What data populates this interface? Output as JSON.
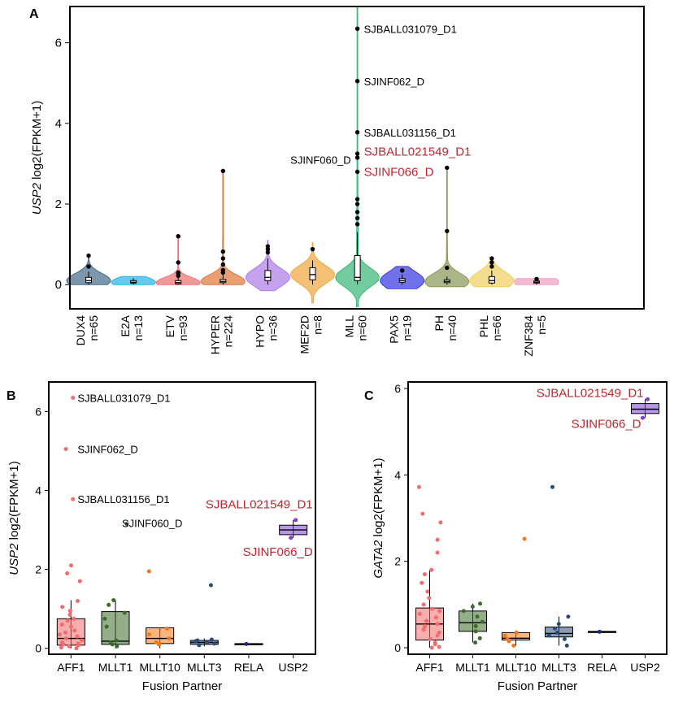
{
  "figure": {
    "panels": [
      "A",
      "B",
      "C"
    ]
  },
  "chart_data": [
    {
      "id": "A",
      "type": "violin",
      "panel_label": "A",
      "ylabel_gene": "USP2",
      "ylabel_rest": " log2(FPKM+1)",
      "ylim": [
        -0.6,
        6.9
      ],
      "yticks": [
        0,
        2,
        4,
        6
      ],
      "groups": [
        {
          "name": "DUX4",
          "n": "n=65",
          "color": "#4a6d8c",
          "q1": 0.05,
          "median": 0.1,
          "q3": 0.18,
          "min": 0.0,
          "max": 0.32,
          "outliers": [
            0.45,
            0.72
          ],
          "spread": 0.18,
          "dmin": 0.0,
          "dmax": 0.72
        },
        {
          "name": "E2A",
          "n": "n=13",
          "color": "#29b6e8",
          "q1": 0.04,
          "median": 0.06,
          "q3": 0.1,
          "min": 0.0,
          "max": 0.16,
          "outliers": [],
          "spread": 0.13,
          "dmin": 0.0,
          "dmax": 0.2
        },
        {
          "name": "ETV",
          "n": "n=93",
          "color": "#f07070",
          "q1": 0.02,
          "median": 0.05,
          "q3": 0.1,
          "min": 0.0,
          "max": 0.18,
          "outliers": [
            0.22,
            0.28,
            0.3,
            0.55,
            1.2
          ],
          "spread": 0.13,
          "dmin": 0.0,
          "dmax": 1.2
        },
        {
          "name": "HYPER",
          "n": "n=224",
          "color": "#e07a3a",
          "q1": 0.05,
          "median": 0.08,
          "q3": 0.13,
          "min": 0.0,
          "max": 0.25,
          "outliers": [
            0.3,
            0.36,
            0.5,
            0.65,
            0.82,
            2.82
          ],
          "spread": 0.17,
          "dmin": 0.0,
          "dmax": 2.82
        },
        {
          "name": "HYPO",
          "n": "n=36",
          "color": "#b07de8",
          "q1": 0.1,
          "median": 0.18,
          "q3": 0.35,
          "min": 0.0,
          "max": 0.65,
          "outliers": [
            0.8,
            0.88,
            0.95
          ],
          "spread": 0.22,
          "dmin": -0.15,
          "dmax": 1.1
        },
        {
          "name": "MEF2D",
          "n": "n=8",
          "color": "#f0a840",
          "q1": 0.12,
          "median": 0.25,
          "q3": 0.42,
          "min": 0.0,
          "max": 0.6,
          "outliers": [
            0.88
          ],
          "spread": 0.22,
          "dmin": -0.45,
          "dmax": 1.05
        },
        {
          "name": "MLL",
          "n": "n=60",
          "color": "#3cb878",
          "q1": 0.1,
          "median": 0.18,
          "q3": 0.72,
          "min": 0.0,
          "max": 1.3,
          "outliers": [
            1.5,
            1.65,
            1.8,
            2.0,
            2.12,
            2.8,
            3.15,
            3.25,
            3.78,
            5.05,
            6.35
          ],
          "spread": 0.23,
          "dmin": -0.55,
          "dmax": 6.9
        },
        {
          "name": "PAX5",
          "n": "n=19",
          "color": "#3a3ae0",
          "q1": 0.06,
          "median": 0.1,
          "q3": 0.15,
          "min": 0.0,
          "max": 0.25,
          "outliers": [
            0.35
          ],
          "spread": 0.22,
          "dmin": -0.1,
          "dmax": 0.45
        },
        {
          "name": "PH",
          "n": "n=40",
          "color": "#8a9a5a",
          "q1": 0.05,
          "median": 0.08,
          "q3": 0.12,
          "min": 0.0,
          "max": 0.2,
          "outliers": [
            0.42,
            1.33,
            2.9
          ],
          "spread": 0.2,
          "dmin": -0.05,
          "dmax": 2.9
        },
        {
          "name": "PHL",
          "n": "n=66",
          "color": "#f0d060",
          "q1": 0.04,
          "median": 0.1,
          "q3": 0.2,
          "min": 0.0,
          "max": 0.35,
          "outliers": [
            0.45,
            0.55,
            0.65
          ],
          "spread": 0.22,
          "dmin": -0.05,
          "dmax": 0.65
        },
        {
          "name": "ZNF384",
          "n": "n=5",
          "color": "#f3a0c0",
          "q1": 0.04,
          "median": 0.06,
          "q3": 0.09,
          "min": 0.0,
          "max": 0.12,
          "outliers": [
            0.14
          ],
          "spread": 0.2,
          "dmin": 0.0,
          "dmax": 0.15
        }
      ],
      "annotations": [
        {
          "text": "SJBALL031079_D1",
          "group": "MLL",
          "y": 6.35,
          "color": "#000000",
          "side": "right"
        },
        {
          "text": "SJINF062_D",
          "group": "MLL",
          "y": 5.05,
          "color": "#000000",
          "side": "right"
        },
        {
          "text": "SJBALL031156_D1",
          "group": "MLL",
          "y": 3.78,
          "color": "#000000",
          "side": "right"
        },
        {
          "text": "SJINF060_D",
          "group": "MLL",
          "y": 3.15,
          "color": "#000000",
          "side": "left"
        },
        {
          "text": "SJBALL021549_D1",
          "group": "MLL",
          "y": 3.25,
          "color": "#c0272d",
          "side": "right"
        },
        {
          "text": "SJINF066_D",
          "group": "MLL",
          "y": 2.8,
          "color": "#c0272d",
          "side": "right"
        }
      ]
    },
    {
      "id": "B",
      "type": "box",
      "panel_label": "B",
      "ylabel_gene": "USP2",
      "ylabel_rest": " log2(FPKM+1)",
      "xlabel": "Fusion Partner",
      "ylim": [
        -0.15,
        6.75
      ],
      "yticks": [
        0,
        2,
        4,
        6
      ],
      "groups": [
        {
          "name": "AFF1",
          "color": "#f36b6b",
          "q1": 0.08,
          "median": 0.25,
          "q3": 0.75,
          "wlo": 0.0,
          "whi": 1.22,
          "points": [
            0.0,
            0.02,
            0.05,
            0.08,
            0.1,
            0.12,
            0.15,
            0.2,
            0.25,
            0.3,
            0.35,
            0.4,
            0.45,
            0.55,
            0.6,
            0.7,
            0.75,
            0.85,
            0.95,
            1.05,
            1.2,
            1.7,
            1.9,
            2.1,
            3.78,
            5.05,
            6.35
          ]
        },
        {
          "name": "MLLT1",
          "color": "#3d6b2a",
          "q1": 0.1,
          "median": 0.18,
          "q3": 0.93,
          "wlo": 0.0,
          "whi": 1.22,
          "points": [
            0.05,
            0.1,
            0.15,
            0.2,
            0.55,
            0.75,
            0.9,
            1.1,
            1.22,
            3.15
          ]
        },
        {
          "name": "MLLT10",
          "color": "#f07a1a",
          "q1": 0.12,
          "median": 0.25,
          "q3": 0.52,
          "wlo": 0.0,
          "whi": 0.52,
          "points": [
            0.1,
            0.15,
            0.25,
            0.35,
            0.5,
            1.95
          ]
        },
        {
          "name": "MLLT3",
          "color": "#274b7a",
          "q1": 0.1,
          "median": 0.15,
          "q3": 0.2,
          "wlo": 0.05,
          "whi": 0.25,
          "points": [
            0.08,
            0.12,
            0.15,
            0.18,
            0.2,
            0.22,
            1.6
          ]
        },
        {
          "name": "RELA",
          "color": "#1a2a8a",
          "q1": 0.1,
          "median": 0.11,
          "q3": 0.12,
          "wlo": 0.1,
          "whi": 0.12,
          "points": [
            0.11
          ]
        },
        {
          "name": "USP2",
          "color": "#7b3fd6",
          "q1": 2.88,
          "median": 3.0,
          "q3": 3.12,
          "wlo": 2.8,
          "whi": 3.25,
          "points": [
            2.8,
            3.25
          ]
        }
      ],
      "annotations": [
        {
          "text": "SJBALL031079_D1",
          "group": "AFF1",
          "y": 6.35,
          "color": "#000000",
          "anchor": "start",
          "dx": 8
        },
        {
          "text": "SJINF062_D",
          "group": "AFF1",
          "y": 5.05,
          "color": "#000000",
          "anchor": "start",
          "dx": 8
        },
        {
          "text": "SJBALL031156_D1",
          "group": "AFF1",
          "y": 3.78,
          "color": "#000000",
          "anchor": "start",
          "dx": 8
        },
        {
          "text": "SJINF060_D",
          "group": "MLLT1",
          "y": 3.18,
          "color": "#000000",
          "anchor": "start",
          "dx": 8
        },
        {
          "text": "SJBALL021549_D1",
          "group": "USP2",
          "y": 3.65,
          "color": "#c0272d",
          "anchor": "end",
          "dx": 24
        },
        {
          "text": "SJINF066_D",
          "group": "USP2",
          "y": 2.45,
          "color": "#c0272d",
          "anchor": "end",
          "dx": 24
        }
      ]
    },
    {
      "id": "C",
      "type": "box",
      "panel_label": "C",
      "ylabel_gene": "GATA2",
      "ylabel_rest": " log2(FPKM+1)",
      "xlabel": "Fusion Partner",
      "ylim": [
        -0.15,
        6.15
      ],
      "yticks": [
        0,
        2,
        4,
        6
      ],
      "groups": [
        {
          "name": "AFF1",
          "color": "#f36b6b",
          "q1": 0.18,
          "median": 0.55,
          "q3": 0.92,
          "wlo": 0.0,
          "whi": 1.8,
          "points": [
            0.0,
            0.02,
            0.08,
            0.12,
            0.2,
            0.28,
            0.35,
            0.42,
            0.5,
            0.55,
            0.62,
            0.7,
            0.78,
            0.85,
            0.9,
            1.0,
            1.15,
            1.3,
            1.5,
            1.7,
            1.8,
            2.2,
            2.5,
            2.9,
            3.1,
            3.72
          ]
        },
        {
          "name": "MLLT1",
          "color": "#3d6b2a",
          "q1": 0.38,
          "median": 0.58,
          "q3": 0.85,
          "wlo": 0.12,
          "whi": 1.02,
          "points": [
            0.12,
            0.22,
            0.38,
            0.5,
            0.6,
            0.72,
            0.85,
            0.95,
            1.02
          ]
        },
        {
          "name": "MLLT10",
          "color": "#f07a1a",
          "q1": 0.18,
          "median": 0.22,
          "q3": 0.35,
          "wlo": 0.05,
          "whi": 0.4,
          "points": [
            0.05,
            0.15,
            0.2,
            0.28,
            0.35,
            2.52
          ]
        },
        {
          "name": "MLLT3",
          "color": "#274b7a",
          "q1": 0.25,
          "median": 0.33,
          "q3": 0.48,
          "wlo": 0.05,
          "whi": 0.72,
          "points": [
            0.05,
            0.2,
            0.28,
            0.35,
            0.45,
            0.55,
            0.72,
            3.72
          ]
        },
        {
          "name": "RELA",
          "color": "#1a2a8a",
          "q1": 0.36,
          "median": 0.37,
          "q3": 0.38,
          "wlo": 0.36,
          "whi": 0.38,
          "points": [
            0.37
          ]
        },
        {
          "name": "USP2",
          "color": "#7b3fd6",
          "q1": 5.42,
          "median": 5.52,
          "q3": 5.65,
          "wlo": 5.32,
          "whi": 5.75,
          "points": [
            5.32,
            5.75
          ]
        }
      ],
      "annotations": [
        {
          "text": "SJBALL021549_D1",
          "group": "USP2",
          "y": 5.9,
          "color": "#c0272d",
          "anchor": "end",
          "dx": -2
        },
        {
          "text": "SJINF066_D",
          "group": "USP2",
          "y": 5.18,
          "color": "#c0272d",
          "anchor": "end",
          "dx": -5
        }
      ]
    }
  ]
}
